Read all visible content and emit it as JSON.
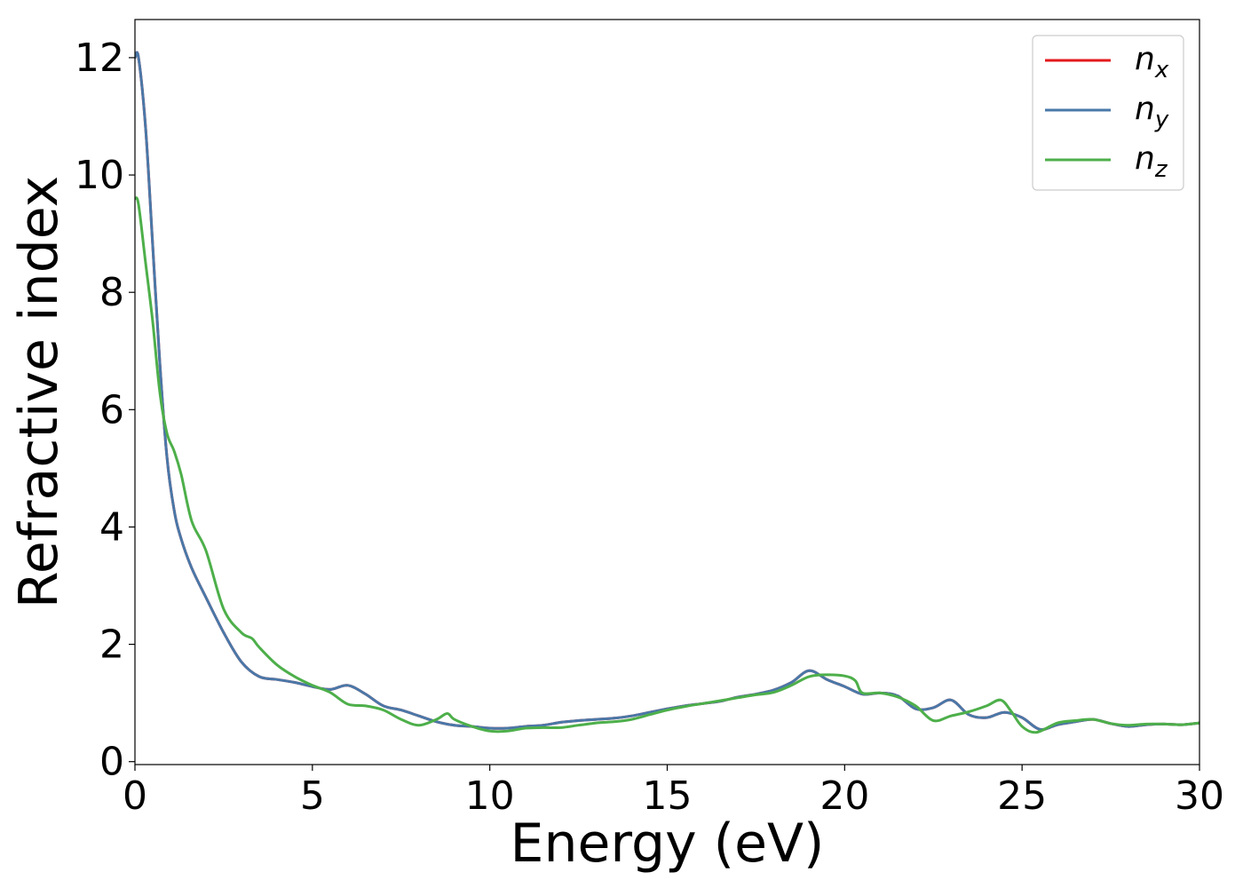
{
  "chart_data": {
    "type": "line",
    "title": "",
    "xlabel": "Energy (eV)",
    "ylabel": "Refractive index",
    "xlim": [
      0,
      30
    ],
    "ylim": [
      -0.05,
      12.65
    ],
    "xticks": [
      0,
      5,
      10,
      15,
      20,
      25,
      30
    ],
    "yticks": [
      0,
      2,
      4,
      6,
      8,
      10,
      12
    ],
    "grid": false,
    "legend_position": "top-right",
    "series": [
      {
        "name": "n_x",
        "legend_main": "n",
        "legend_sub": "x",
        "color": "#e41a1c",
        "x": [
          0,
          0.1,
          0.3,
          0.5,
          0.7,
          0.9,
          1.1,
          1.3,
          1.6,
          2.0,
          2.5,
          3.0,
          3.5,
          4.0,
          4.5,
          5.0,
          5.5,
          6.0,
          6.5,
          7.0,
          7.5,
          8.0,
          8.5,
          9.0,
          9.5,
          10.0,
          10.5,
          11.0,
          11.5,
          12.0,
          12.5,
          13.0,
          13.5,
          14.0,
          14.5,
          15.0,
          15.5,
          16.0,
          16.5,
          17.0,
          17.5,
          18.0,
          18.5,
          19.0,
          19.5,
          20.0,
          20.5,
          21.0,
          21.5,
          22.0,
          22.5,
          23.0,
          23.5,
          24.0,
          24.5,
          25.0,
          25.5,
          26.0,
          26.5,
          27.0,
          27.5,
          28.0,
          28.5,
          29.0,
          29.5,
          30.0
        ],
        "y": [
          12.0,
          12.0,
          10.8,
          8.8,
          6.8,
          5.2,
          4.3,
          3.8,
          3.3,
          2.8,
          2.2,
          1.7,
          1.45,
          1.4,
          1.35,
          1.28,
          1.23,
          1.3,
          1.15,
          0.95,
          0.88,
          0.78,
          0.68,
          0.62,
          0.6,
          0.57,
          0.57,
          0.6,
          0.62,
          0.67,
          0.7,
          0.72,
          0.74,
          0.78,
          0.84,
          0.9,
          0.95,
          0.99,
          1.03,
          1.1,
          1.15,
          1.22,
          1.35,
          1.55,
          1.4,
          1.28,
          1.15,
          1.17,
          1.12,
          0.9,
          0.92,
          1.05,
          0.8,
          0.75,
          0.84,
          0.75,
          0.55,
          0.63,
          0.68,
          0.72,
          0.65,
          0.6,
          0.63,
          0.64,
          0.63,
          0.66
        ]
      },
      {
        "name": "n_y",
        "legend_main": "n",
        "legend_sub": "y",
        "color": "#4a78a8",
        "x": [
          0,
          0.1,
          0.3,
          0.5,
          0.7,
          0.9,
          1.1,
          1.3,
          1.6,
          2.0,
          2.5,
          3.0,
          3.5,
          4.0,
          4.5,
          5.0,
          5.5,
          6.0,
          6.5,
          7.0,
          7.5,
          8.0,
          8.5,
          9.0,
          9.5,
          10.0,
          10.5,
          11.0,
          11.5,
          12.0,
          12.5,
          13.0,
          13.5,
          14.0,
          14.5,
          15.0,
          15.5,
          16.0,
          16.5,
          17.0,
          17.5,
          18.0,
          18.5,
          19.0,
          19.5,
          20.0,
          20.5,
          21.0,
          21.5,
          22.0,
          22.5,
          23.0,
          23.5,
          24.0,
          24.5,
          25.0,
          25.5,
          26.0,
          26.5,
          27.0,
          27.5,
          28.0,
          28.5,
          29.0,
          29.5,
          30.0
        ],
        "y": [
          12.0,
          12.0,
          10.8,
          8.8,
          6.8,
          5.2,
          4.3,
          3.8,
          3.3,
          2.8,
          2.2,
          1.7,
          1.45,
          1.4,
          1.35,
          1.28,
          1.23,
          1.3,
          1.15,
          0.95,
          0.88,
          0.78,
          0.68,
          0.62,
          0.6,
          0.57,
          0.57,
          0.6,
          0.62,
          0.67,
          0.7,
          0.72,
          0.74,
          0.78,
          0.84,
          0.9,
          0.95,
          0.99,
          1.03,
          1.1,
          1.15,
          1.22,
          1.35,
          1.55,
          1.4,
          1.28,
          1.15,
          1.17,
          1.12,
          0.9,
          0.92,
          1.05,
          0.8,
          0.75,
          0.84,
          0.75,
          0.55,
          0.63,
          0.68,
          0.72,
          0.65,
          0.6,
          0.63,
          0.64,
          0.63,
          0.66
        ]
      },
      {
        "name": "n_z",
        "legend_main": "n",
        "legend_sub": "z",
        "color": "#4daf4a",
        "x": [
          0,
          0.1,
          0.3,
          0.5,
          0.7,
          0.9,
          1.1,
          1.3,
          1.6,
          2.0,
          2.5,
          3.0,
          3.3,
          3.5,
          4.0,
          4.5,
          5.0,
          5.5,
          6.0,
          6.5,
          7.0,
          7.5,
          8.0,
          8.5,
          8.8,
          9.0,
          9.5,
          10.0,
          10.5,
          11.0,
          11.5,
          12.0,
          12.5,
          13.0,
          13.5,
          14.0,
          14.5,
          15.0,
          15.5,
          16.0,
          16.5,
          17.0,
          17.5,
          18.0,
          18.5,
          19.0,
          19.5,
          20.0,
          20.3,
          20.5,
          21.0,
          21.5,
          22.0,
          22.5,
          23.0,
          23.5,
          24.0,
          24.4,
          24.7,
          25.0,
          25.4,
          26.0,
          26.5,
          27.0,
          27.5,
          28.0,
          28.5,
          29.0,
          29.5,
          30.0
        ],
        "y": [
          9.6,
          9.5,
          8.5,
          7.5,
          6.3,
          5.6,
          5.3,
          4.9,
          4.1,
          3.6,
          2.6,
          2.2,
          2.1,
          1.95,
          1.65,
          1.45,
          1.3,
          1.18,
          0.98,
          0.95,
          0.88,
          0.72,
          0.62,
          0.72,
          0.82,
          0.72,
          0.6,
          0.52,
          0.52,
          0.57,
          0.58,
          0.58,
          0.62,
          0.66,
          0.68,
          0.72,
          0.8,
          0.88,
          0.94,
          0.99,
          1.04,
          1.09,
          1.14,
          1.18,
          1.3,
          1.45,
          1.48,
          1.46,
          1.38,
          1.17,
          1.17,
          1.1,
          0.95,
          0.7,
          0.78,
          0.85,
          0.95,
          1.05,
          0.85,
          0.6,
          0.5,
          0.66,
          0.7,
          0.72,
          0.65,
          0.62,
          0.64,
          0.64,
          0.63,
          0.66
        ]
      }
    ]
  }
}
